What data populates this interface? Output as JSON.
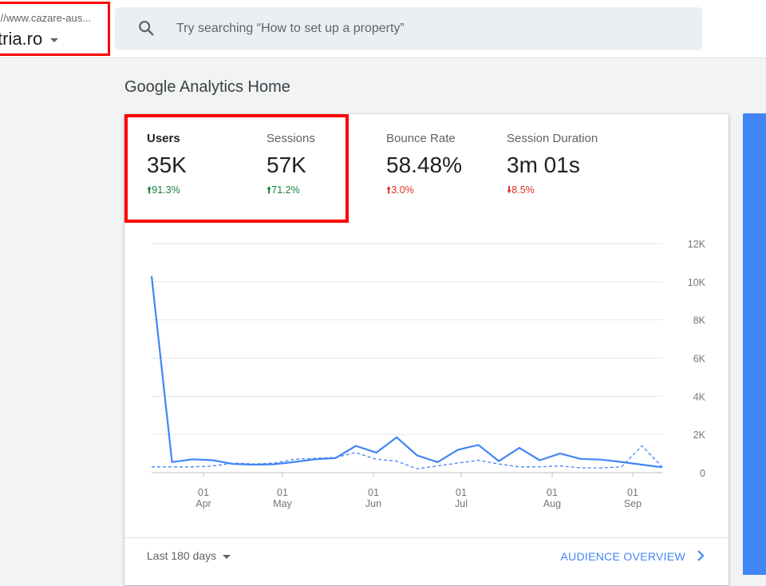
{
  "property": {
    "url": "://www.cazare-aus...",
    "name": "tria.ro"
  },
  "search": {
    "placeholder": "Try searching “How to set up a property”"
  },
  "page": {
    "title": "Google Analytics Home"
  },
  "metrics": [
    {
      "label": "Users",
      "value": "35K",
      "change": "91.3%",
      "direction": "up",
      "color": "#188038"
    },
    {
      "label": "Sessions",
      "value": "57K",
      "change": "71.2%",
      "direction": "up",
      "color": "#188038"
    },
    {
      "label": "Bounce Rate",
      "value": "58.48%",
      "change": "3.0%",
      "direction": "up",
      "color": "#d93025"
    },
    {
      "label": "Session Duration",
      "value": "3m 01s",
      "change": "8.5%",
      "direction": "down",
      "color": "#d93025"
    }
  ],
  "chart_data": {
    "type": "line",
    "x_ticks": [
      {
        "day": "01",
        "month": "Apr"
      },
      {
        "day": "01",
        "month": "May"
      },
      {
        "day": "01",
        "month": "Jun"
      },
      {
        "day": "01",
        "month": "Jul"
      },
      {
        "day": "01",
        "month": "Aug"
      },
      {
        "day": "01",
        "month": "Sep"
      }
    ],
    "y_ticks": [
      "12K",
      "10K",
      "8K",
      "6K",
      "4K",
      "2K",
      "0"
    ],
    "ylim": [
      0,
      12000
    ],
    "series": [
      {
        "style": "solid",
        "color": "#4285f4",
        "values": [
          10300,
          550,
          700,
          650,
          450,
          420,
          440,
          560,
          700,
          760,
          1400,
          1050,
          1850,
          900,
          550,
          1200,
          1450,
          600,
          1300,
          650,
          1000,
          720,
          680,
          560,
          420,
          280
        ]
      },
      {
        "style": "dashed",
        "color": "#4285f4",
        "values": [
          300,
          300,
          300,
          350,
          500,
          450,
          500,
          700,
          750,
          800,
          1050,
          700,
          600,
          200,
          350,
          500,
          650,
          450,
          300,
          300,
          350,
          250,
          250,
          300,
          1400,
          300
        ]
      }
    ],
    "grid": true
  },
  "footer": {
    "range": "Last 180 days",
    "link": "AUDIENCE OVERVIEW"
  },
  "colors": {
    "accent": "#4285f4",
    "highlight": "#ff0000"
  }
}
